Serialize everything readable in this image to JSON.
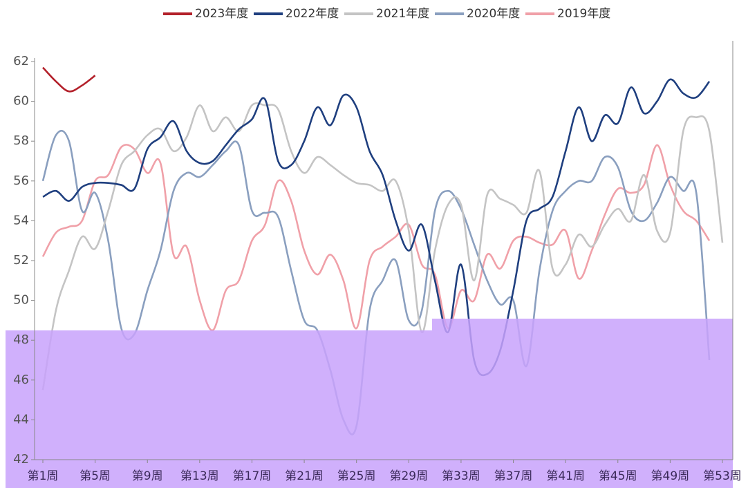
{
  "chart_data": {
    "type": "line",
    "categories": [
      "第1周",
      null,
      null,
      null,
      "第5周",
      null,
      null,
      null,
      "第9周",
      null,
      null,
      null,
      "第13周",
      null,
      null,
      null,
      "第17周",
      null,
      null,
      null,
      "第21周",
      null,
      null,
      null,
      "第25周",
      null,
      null,
      null,
      "第29周",
      null,
      null,
      null,
      "第33周",
      null,
      null,
      null,
      "第37周",
      null,
      null,
      null,
      "第41周",
      null,
      null,
      null,
      "第45周",
      null,
      null,
      null,
      "第49周",
      null,
      null,
      null,
      "第53周"
    ],
    "ylim": [
      42,
      62
    ],
    "yticks": [
      42,
      44,
      46,
      48,
      50,
      52,
      54,
      56,
      58,
      60,
      62
    ],
    "legend": "top",
    "series": [
      {
        "name": "2023年度",
        "color": "#b3202a",
        "values": [
          61.7,
          61.0,
          60.5,
          60.8,
          61.3,
          null,
          null,
          null,
          null,
          null,
          null,
          null,
          null,
          null,
          null,
          null,
          null,
          null,
          null,
          null,
          null,
          null,
          null,
          null,
          null,
          null,
          null,
          null,
          null,
          null,
          null,
          null,
          null,
          null,
          null,
          null,
          null,
          null,
          null,
          null,
          null,
          null,
          null,
          null,
          null,
          null,
          null,
          null,
          null,
          null,
          null,
          null,
          null
        ]
      },
      {
        "name": "2022年度",
        "color": "#1f3f7f",
        "values": [
          55.2,
          55.5,
          55.0,
          55.7,
          55.9,
          55.9,
          55.8,
          55.6,
          57.6,
          58.2,
          59.0,
          57.5,
          56.9,
          57.0,
          57.8,
          58.6,
          59.1,
          60.1,
          57.0,
          56.8,
          58.0,
          59.7,
          58.8,
          60.3,
          59.7,
          57.5,
          56.3,
          54.0,
          52.5,
          53.8,
          51.0,
          48.4,
          51.8,
          47.0,
          46.3,
          47.5,
          50.5,
          54.0,
          54.6,
          55.2,
          57.5,
          59.7,
          58.0,
          59.3,
          58.9,
          60.7,
          59.4,
          60.0,
          61.1,
          60.4,
          60.2,
          61.0,
          null
        ]
      },
      {
        "name": "2021年度",
        "color": "#c4c4c4",
        "values": [
          45.5,
          49.5,
          51.5,
          53.2,
          52.6,
          54.5,
          56.8,
          57.5,
          58.3,
          58.6,
          57.5,
          58.2,
          59.8,
          58.5,
          59.2,
          58.5,
          59.8,
          59.8,
          59.6,
          57.5,
          56.4,
          57.2,
          56.8,
          56.3,
          55.9,
          55.8,
          55.5,
          56.0,
          53.5,
          48.4,
          52.5,
          54.8,
          54.8,
          51.0,
          55.3,
          55.1,
          54.8,
          54.4,
          56.5,
          51.6,
          51.8,
          53.3,
          52.7,
          53.8,
          54.6,
          54.0,
          56.3,
          53.5,
          53.4,
          58.5,
          59.2,
          58.5,
          52.9
        ]
      },
      {
        "name": "2020年度",
        "color": "#8a9fbf",
        "values": [
          56.0,
          58.3,
          58.0,
          54.5,
          55.4,
          53.0,
          48.6,
          48.3,
          50.5,
          52.5,
          55.5,
          56.4,
          56.2,
          56.8,
          57.5,
          57.8,
          54.5,
          54.4,
          54.2,
          51.5,
          49.0,
          48.5,
          46.5,
          44.0,
          43.7,
          49.5,
          51.0,
          52.0,
          49.0,
          49.5,
          54.5,
          55.5,
          54.6,
          52.8,
          51.0,
          49.8,
          50.0,
          46.7,
          51.5,
          54.5,
          55.5,
          56.0,
          56.0,
          57.2,
          56.7,
          54.5,
          54.0,
          54.9,
          56.2,
          55.5,
          55.4,
          47.0,
          null
        ]
      },
      {
        "name": "2019年度",
        "color": "#f0a0a8",
        "values": [
          52.2,
          53.4,
          53.7,
          54.0,
          56.0,
          56.3,
          57.7,
          57.6,
          56.4,
          56.9,
          52.3,
          52.7,
          50.0,
          48.5,
          50.5,
          51.0,
          53.0,
          53.8,
          56.0,
          55.0,
          52.5,
          51.3,
          52.3,
          51.0,
          48.6,
          52.0,
          52.7,
          53.2,
          53.8,
          51.8,
          51.3,
          48.6,
          50.5,
          50.0,
          52.3,
          51.6,
          53.0,
          53.2,
          52.9,
          52.8,
          53.5,
          51.1,
          52.5,
          54.3,
          55.6,
          55.4,
          55.8,
          57.8,
          55.8,
          54.5,
          54.0,
          53.0,
          null
        ]
      }
    ]
  }
}
